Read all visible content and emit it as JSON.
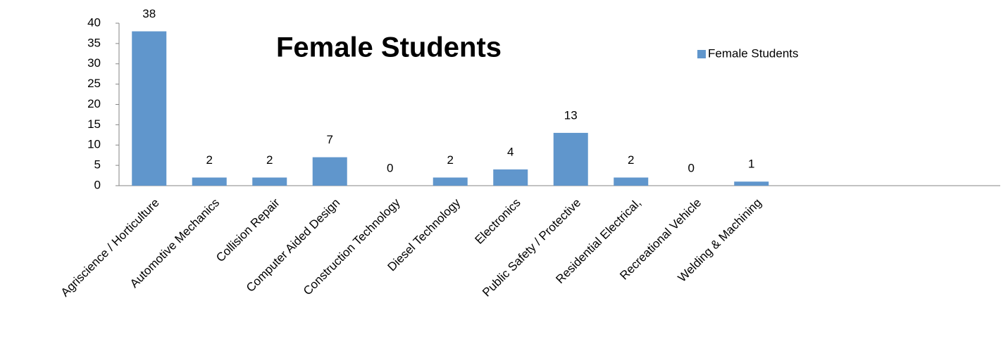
{
  "chart_data": {
    "type": "bar",
    "title": "Female Students",
    "categories": [
      "Agriscience / Horticulture",
      "Automotive Mechanics",
      "Collision Repair",
      "Computer Aided Design",
      "Construction Technology",
      "Diesel Technology",
      "Electronics",
      "Public Safety / Protective",
      "Residential Electrical,",
      "Recreational Vehicle",
      "Welding & Machining",
      null,
      null,
      null,
      null
    ],
    "series": [
      {
        "name": "Female Students",
        "color": "#6096cc",
        "values": [
          38,
          2,
          2,
          7,
          0,
          2,
          4,
          13,
          2,
          0,
          1,
          null,
          null,
          null,
          null
        ]
      }
    ],
    "ylim": [
      0,
      40
    ],
    "yticks": [
      0,
      5,
      10,
      15,
      20,
      25,
      30,
      35,
      40
    ],
    "grid": false,
    "legend": "top-right"
  }
}
